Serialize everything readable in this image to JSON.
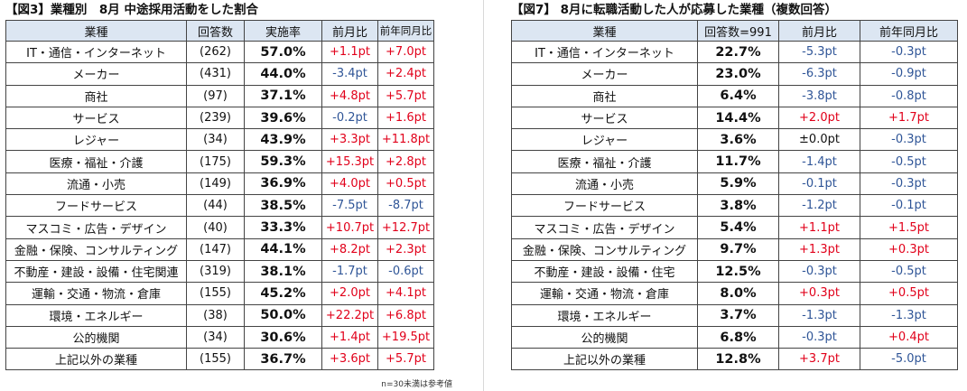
{
  "left": {
    "title": "【図3】業種別　8月 中途採用活動をした割合",
    "headers": [
      "業種",
      "回答数",
      "実施率",
      "前月比",
      "前年同月比"
    ],
    "rows": [
      {
        "industry": "IT・通信・インターネット",
        "n": "(262)",
        "rate": "57.0%",
        "mom": "+1.1pt",
        "yoy": "+7.0pt"
      },
      {
        "industry": "メーカー",
        "n": "(431)",
        "rate": "44.0%",
        "mom": "-3.4pt",
        "yoy": "+2.4pt"
      },
      {
        "industry": "商社",
        "n": "(97)",
        "rate": "37.1%",
        "mom": "+4.8pt",
        "yoy": "+5.7pt"
      },
      {
        "industry": "サービス",
        "n": "(239)",
        "rate": "39.6%",
        "mom": "-0.2pt",
        "yoy": "+1.6pt"
      },
      {
        "industry": "レジャー",
        "n": "(34)",
        "rate": "43.9%",
        "mom": "+3.3pt",
        "yoy": "+11.8pt"
      },
      {
        "industry": "医療・福祉・介護",
        "n": "(175)",
        "rate": "59.3%",
        "mom": "+15.3pt",
        "yoy": "+2.8pt"
      },
      {
        "industry": "流通・小売",
        "n": "(149)",
        "rate": "36.9%",
        "mom": "+4.0pt",
        "yoy": "+0.5pt"
      },
      {
        "industry": "フードサービス",
        "n": "(44)",
        "rate": "38.5%",
        "mom": "-7.5pt",
        "yoy": "-8.7pt"
      },
      {
        "industry": "マスコミ・広告・デザイン",
        "n": "(40)",
        "rate": "33.3%",
        "mom": "+10.7pt",
        "yoy": "+12.7pt"
      },
      {
        "industry": "金融・保険、コンサルティング",
        "n": "(147)",
        "rate": "44.1%",
        "mom": "+8.2pt",
        "yoy": "+2.3pt"
      },
      {
        "industry": "不動産・建設・設備・住宅関連",
        "n": "(319)",
        "rate": "38.1%",
        "mom": "-1.7pt",
        "yoy": "-0.6pt"
      },
      {
        "industry": "運輸・交通・物流・倉庫",
        "n": "(155)",
        "rate": "45.2%",
        "mom": "+2.0pt",
        "yoy": "+4.1pt"
      },
      {
        "industry": "環境・エネルギー",
        "n": "(38)",
        "rate": "50.0%",
        "mom": "+22.2pt",
        "yoy": "+6.8pt"
      },
      {
        "industry": "公的機関",
        "n": "(34)",
        "rate": "30.6%",
        "mom": "+1.4pt",
        "yoy": "+19.5pt"
      },
      {
        "industry": "上記以外の業種",
        "n": "(155)",
        "rate": "36.7%",
        "mom": "+3.6pt",
        "yoy": "+5.7pt"
      }
    ],
    "note": "n=30未満は参考値"
  },
  "right": {
    "title": "【図7】 8月に転職活動した人が応募した業種（複数回答）",
    "headers": [
      "業種",
      "回答数=991",
      "前月比",
      "前年同月比"
    ],
    "rows": [
      {
        "industry": "IT・通信・インターネット",
        "rate": "22.7%",
        "mom": "-5.3pt",
        "yoy": "-0.3pt"
      },
      {
        "industry": "メーカー",
        "rate": "23.0%",
        "mom": "-6.3pt",
        "yoy": "-0.9pt"
      },
      {
        "industry": "商社",
        "rate": "6.4%",
        "mom": "-3.8pt",
        "yoy": "-0.8pt"
      },
      {
        "industry": "サービス",
        "rate": "14.4%",
        "mom": "+2.0pt",
        "yoy": "+1.7pt"
      },
      {
        "industry": "レジャー",
        "rate": "3.6%",
        "mom": "±0.0pt",
        "yoy": "-0.3pt"
      },
      {
        "industry": "医療・福祉・介護",
        "rate": "11.7%",
        "mom": "-1.4pt",
        "yoy": "-0.5pt"
      },
      {
        "industry": "流通・小売",
        "rate": "5.9%",
        "mom": "-0.1pt",
        "yoy": "-0.3pt"
      },
      {
        "industry": "フードサービス",
        "rate": "3.8%",
        "mom": "-1.2pt",
        "yoy": "-0.1pt"
      },
      {
        "industry": "マスコミ・広告・デザイン",
        "rate": "5.4%",
        "mom": "+1.1pt",
        "yoy": "+1.5pt"
      },
      {
        "industry": "金融・保険、コンサルティング",
        "rate": "9.7%",
        "mom": "+1.3pt",
        "yoy": "+0.3pt"
      },
      {
        "industry": "不動産・建設・設備・住宅",
        "rate": "12.5%",
        "mom": "-0.3pt",
        "yoy": "-0.5pt"
      },
      {
        "industry": "運輸・交通・物流・倉庫",
        "rate": "8.0%",
        "mom": "+0.3pt",
        "yoy": "+0.5pt"
      },
      {
        "industry": "環境・エネルギー",
        "rate": "3.7%",
        "mom": "-1.3pt",
        "yoy": "-1.3pt"
      },
      {
        "industry": "公的機関",
        "rate": "6.8%",
        "mom": "-0.3pt",
        "yoy": "+0.4pt"
      },
      {
        "industry": "上記以外の業種",
        "rate": "12.8%",
        "mom": "+3.7pt",
        "yoy": "-5.0pt"
      }
    ]
  },
  "colors": {
    "header_bg": "#dce6f2",
    "positive": "#e1001a",
    "negative": "#2f5597",
    "border": "#444444"
  }
}
